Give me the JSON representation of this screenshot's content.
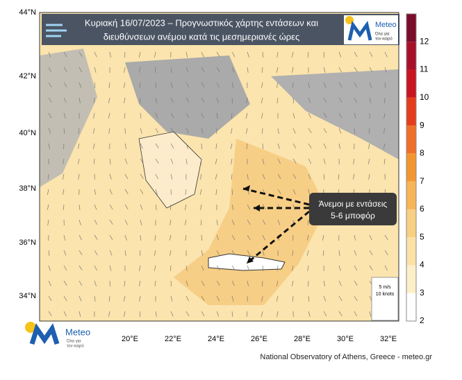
{
  "header": {
    "title_line1": "Κυριακή 16/07/2023 – Προγνωστικός χάρτης εντάσεων και",
    "title_line2": "διευθύνσεων ανέμου κατά τις μεσημεριανές ώρες"
  },
  "logo": {
    "name": "Meteo",
    "tagline1": "Όλα για",
    "tagline2": "τον καιρό"
  },
  "annotation": {
    "line1": "Άνεμοι με εντάσεις",
    "line2": "5-6 μποφόρ"
  },
  "legend_key": {
    "line1": "5 m/s",
    "line2": "10 knots"
  },
  "map": {
    "lat_labels": [
      "44°N",
      "42°N",
      "40°N",
      "38°N",
      "36°N",
      "34°N"
    ],
    "lon_labels": [
      "20°E",
      "22°E",
      "24°E",
      "26°E",
      "28°E",
      "30°E",
      "32°E"
    ]
  },
  "colorbar": {
    "ticks": [
      12,
      11,
      10,
      9,
      8,
      7,
      6,
      5,
      4,
      3,
      2
    ],
    "colors": [
      "#7a0d2a",
      "#a8102a",
      "#c9151f",
      "#e53d1c",
      "#f0702a",
      "#f3962f",
      "#f6b557",
      "#f9cf82",
      "#fbe1a6",
      "#fdefc9",
      "#ffffff"
    ]
  },
  "footer": "National Observatory of Athens, Greece - meteo.gr"
}
